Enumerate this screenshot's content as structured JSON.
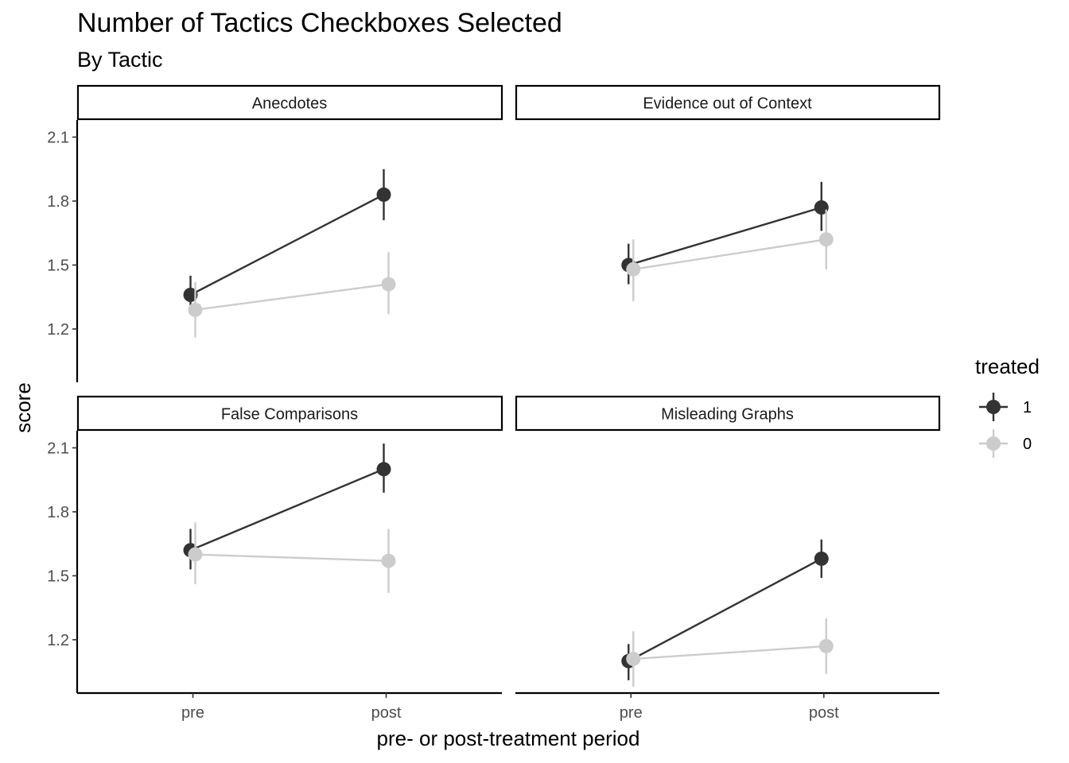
{
  "chart_data": {
    "type": "line",
    "title": "Number of Tactics Checkboxes Selected",
    "subtitle": "By Tactic",
    "xlabel": "pre- or post-treatment period",
    "ylabel": "score",
    "categories": [
      "pre",
      "post"
    ],
    "y_ticks": [
      1.2,
      1.5,
      1.8,
      2.1
    ],
    "y_tick_labels": [
      "1.2",
      "1.5",
      "1.8",
      "2.1"
    ],
    "ylim": [
      0.95,
      2.18
    ],
    "grid": false,
    "legend": {
      "title": "treated",
      "position": "right",
      "entries": [
        {
          "label": "1",
          "color": "#333333"
        },
        {
          "label": "0",
          "color": "#cccccc"
        }
      ]
    },
    "facets": [
      {
        "label": "Anecdotes",
        "series": [
          {
            "treated": "1",
            "color": "#333333",
            "values": [
              1.36,
              1.83
            ],
            "lower": [
              1.27,
              1.71
            ],
            "upper": [
              1.45,
              1.95
            ]
          },
          {
            "treated": "0",
            "color": "#cccccc",
            "values": [
              1.29,
              1.41
            ],
            "lower": [
              1.16,
              1.27
            ],
            "upper": [
              1.42,
              1.56
            ]
          }
        ]
      },
      {
        "label": "Evidence out of Context",
        "series": [
          {
            "treated": "1",
            "color": "#333333",
            "values": [
              1.5,
              1.77
            ],
            "lower": [
              1.41,
              1.66
            ],
            "upper": [
              1.6,
              1.89
            ]
          },
          {
            "treated": "0",
            "color": "#cccccc",
            "values": [
              1.48,
              1.62
            ],
            "lower": [
              1.33,
              1.48
            ],
            "upper": [
              1.62,
              1.76
            ]
          }
        ]
      },
      {
        "label": "False Comparisons",
        "series": [
          {
            "treated": "1",
            "color": "#333333",
            "values": [
              1.62,
              2.0
            ],
            "lower": [
              1.53,
              1.89
            ],
            "upper": [
              1.72,
              2.12
            ]
          },
          {
            "treated": "0",
            "color": "#cccccc",
            "values": [
              1.6,
              1.57
            ],
            "lower": [
              1.46,
              1.42
            ],
            "upper": [
              1.75,
              1.72
            ]
          }
        ]
      },
      {
        "label": "Misleading Graphs",
        "series": [
          {
            "treated": "1",
            "color": "#333333",
            "values": [
              1.1,
              1.58
            ],
            "lower": [
              1.01,
              1.49
            ],
            "upper": [
              1.18,
              1.67
            ]
          },
          {
            "treated": "0",
            "color": "#cccccc",
            "values": [
              1.11,
              1.17
            ],
            "lower": [
              0.98,
              1.04
            ],
            "upper": [
              1.24,
              1.3
            ]
          }
        ]
      }
    ]
  }
}
